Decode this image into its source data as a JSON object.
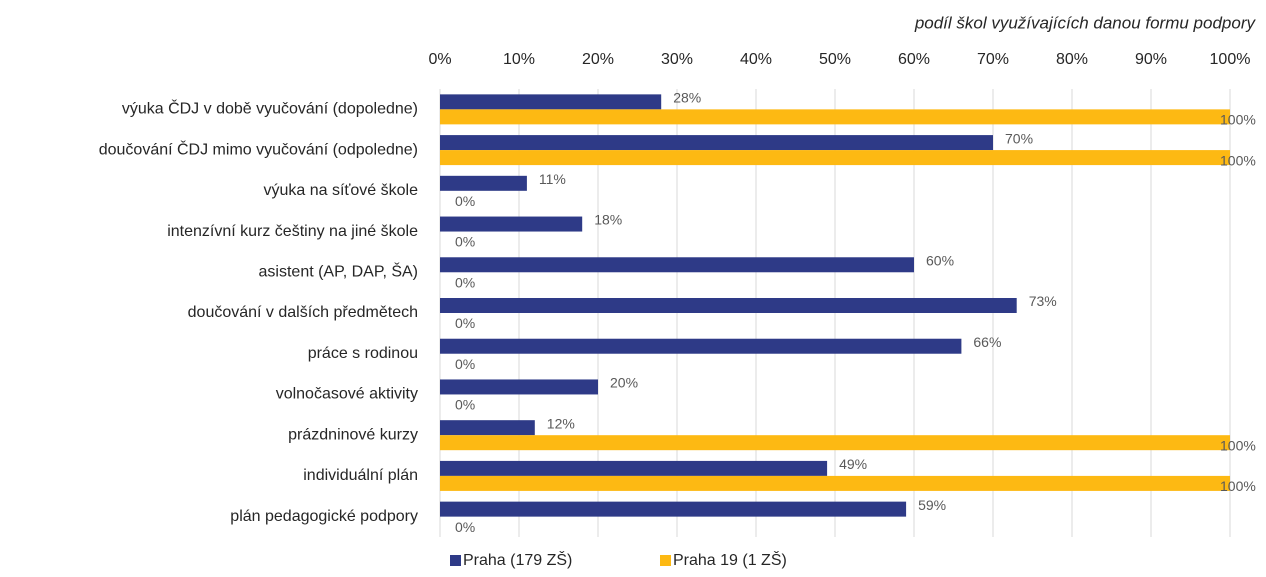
{
  "chart_data": {
    "type": "barh",
    "x_label": "podíl škol využívajících danou formu podpory",
    "categories": [
      "výuka ČDJ v době vyučování (dopoledne)",
      "doučování ČDJ mimo vyučování (odpoledne)",
      "výuka na síťové škole",
      "intenzívní kurz češtiny na jiné škole",
      "asistent (AP, DAP, ŠA)",
      "doučování v dalších předmětech",
      "práce s rodinou",
      "volnočasové aktivity",
      "prázdninové kurzy",
      "individuální plán",
      "plán pedagogické podpory"
    ],
    "series": [
      {
        "name": "Praha (179 ZŠ)",
        "color": "#2e3a87",
        "values": [
          28,
          70,
          11,
          18,
          60,
          73,
          66,
          20,
          12,
          49,
          59
        ],
        "value_labels": [
          "28%",
          "70%",
          "11%",
          "18%",
          "60%",
          "73%",
          "66%",
          "20%",
          "12%",
          "49%",
          "59%"
        ]
      },
      {
        "name": "Praha 19 (1 ZŠ)",
        "color": "#fdb913",
        "values": [
          100,
          100,
          0,
          0,
          0,
          0,
          0,
          0,
          100,
          100,
          0
        ],
        "value_labels": [
          "100%",
          "100%",
          "0%",
          "0%",
          "0%",
          "0%",
          "0%",
          "0%",
          "100%",
          "100%",
          "0%"
        ]
      }
    ],
    "xlim": [
      0,
      100
    ],
    "xticks": [
      {
        "value": 0,
        "label": "0%"
      },
      {
        "value": 10,
        "label": "10%"
      },
      {
        "value": 20,
        "label": "20%"
      },
      {
        "value": 30,
        "label": "30%"
      },
      {
        "value": 40,
        "label": "40%"
      },
      {
        "value": 50,
        "label": "50%"
      },
      {
        "value": 60,
        "label": "60%"
      },
      {
        "value": 70,
        "label": "70%"
      },
      {
        "value": 80,
        "label": "80%"
      },
      {
        "value": 90,
        "label": "90%"
      },
      {
        "value": 100,
        "label": "100%"
      }
    ],
    "grid": true,
    "legend": "bottom"
  }
}
